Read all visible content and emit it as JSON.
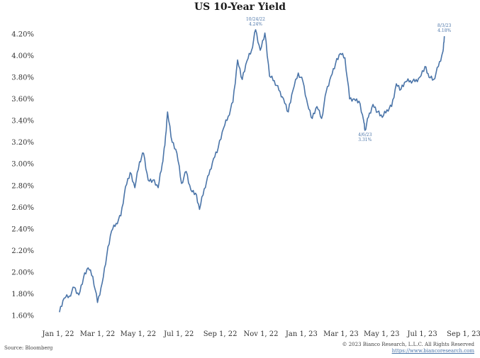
{
  "chart_data": {
    "type": "line",
    "title": "US 10-Year Yield",
    "xlabel": "",
    "ylabel": "",
    "ylim": [
      1.6,
      4.3
    ],
    "grid": false,
    "y_ticks": [
      "1.60%",
      "1.80%",
      "2.00%",
      "2.20%",
      "2.40%",
      "2.60%",
      "2.80%",
      "3.00%",
      "3.20%",
      "3.40%",
      "3.60%",
      "3.80%",
      "4.00%",
      "4.20%"
    ],
    "y_tick_values": [
      1.6,
      1.8,
      2.0,
      2.2,
      2.4,
      2.6,
      2.8,
      3.0,
      3.2,
      3.4,
      3.6,
      3.8,
      4.0,
      4.2
    ],
    "x_ticks": [
      "Jan 1, 22",
      "Mar 1, 22",
      "May 1, 22",
      "Jul 1, 22",
      "Sep 1, 22",
      "Nov 1, 22",
      "Jan 1, 23",
      "Mar 1, 23",
      "May 1, 23",
      "Jul 1, 23",
      "Sep 1, 23"
    ],
    "x_tick_dates": [
      "2022-01-01",
      "2022-03-01",
      "2022-05-01",
      "2022-07-01",
      "2022-09-01",
      "2022-11-01",
      "2023-01-01",
      "2023-03-01",
      "2023-05-01",
      "2023-07-01",
      "2023-09-01"
    ],
    "x": [
      "2022-01-03",
      "2022-01-10",
      "2022-01-18",
      "2022-01-25",
      "2022-02-01",
      "2022-02-08",
      "2022-02-15",
      "2022-02-22",
      "2022-03-01",
      "2022-03-08",
      "2022-03-15",
      "2022-03-22",
      "2022-03-29",
      "2022-04-05",
      "2022-04-12",
      "2022-04-19",
      "2022-04-26",
      "2022-05-03",
      "2022-05-09",
      "2022-05-16",
      "2022-05-23",
      "2022-05-31",
      "2022-06-06",
      "2022-06-10",
      "2022-06-14",
      "2022-06-21",
      "2022-06-28",
      "2022-07-05",
      "2022-07-12",
      "2022-07-19",
      "2022-07-26",
      "2022-08-01",
      "2022-08-08",
      "2022-08-15",
      "2022-08-22",
      "2022-08-29",
      "2022-09-06",
      "2022-09-13",
      "2022-09-20",
      "2022-09-27",
      "2022-10-04",
      "2022-10-11",
      "2022-10-18",
      "2022-10-24",
      "2022-10-31",
      "2022-11-07",
      "2022-11-14",
      "2022-11-21",
      "2022-11-28",
      "2022-12-05",
      "2022-12-12",
      "2022-12-19",
      "2022-12-27",
      "2023-01-03",
      "2023-01-10",
      "2023-01-17",
      "2023-01-24",
      "2023-01-31",
      "2023-02-07",
      "2023-02-14",
      "2023-02-21",
      "2023-02-28",
      "2023-03-07",
      "2023-03-14",
      "2023-03-21",
      "2023-03-28",
      "2023-04-04",
      "2023-04-06",
      "2023-04-11",
      "2023-04-18",
      "2023-04-25",
      "2023-05-02",
      "2023-05-09",
      "2023-05-16",
      "2023-05-23",
      "2023-05-30",
      "2023-06-06",
      "2023-06-13",
      "2023-06-20",
      "2023-06-27",
      "2023-07-05",
      "2023-07-11",
      "2023-07-18",
      "2023-07-25",
      "2023-08-01",
      "2023-08-03"
    ],
    "series": [
      {
        "name": "",
        "values": [
          1.63,
          1.76,
          1.78,
          1.86,
          1.79,
          1.95,
          2.04,
          1.96,
          1.72,
          1.9,
          2.16,
          2.38,
          2.45,
          2.52,
          2.79,
          2.92,
          2.78,
          3.02,
          3.1,
          2.85,
          2.85,
          2.78,
          3.0,
          3.17,
          3.48,
          3.2,
          3.1,
          2.82,
          2.93,
          2.76,
          2.73,
          2.58,
          2.77,
          2.9,
          3.05,
          3.15,
          3.33,
          3.44,
          3.57,
          3.96,
          3.78,
          3.95,
          4.05,
          4.24,
          4.05,
          4.21,
          3.81,
          3.77,
          3.68,
          3.6,
          3.48,
          3.68,
          3.84,
          3.76,
          3.55,
          3.42,
          3.53,
          3.42,
          3.67,
          3.81,
          3.93,
          4.02,
          3.98,
          3.6,
          3.6,
          3.58,
          3.4,
          3.31,
          3.43,
          3.55,
          3.48,
          3.43,
          3.5,
          3.53,
          3.74,
          3.69,
          3.76,
          3.77,
          3.76,
          3.8,
          3.9,
          3.8,
          3.78,
          3.9,
          4.04,
          4.18
        ]
      }
    ],
    "annotations": [
      {
        "date": "2022-10-24",
        "value": 4.24,
        "label": "10/24/22",
        "sublabel": "4.24%",
        "position": "above"
      },
      {
        "date": "2023-04-06",
        "value": 3.31,
        "label": "4/6/23",
        "sublabel": "3.31%",
        "position": "below"
      },
      {
        "date": "2023-08-03",
        "value": 4.18,
        "label": "8/3/23",
        "sublabel": "4.18%",
        "position": "above"
      }
    ],
    "line_color": "#4a74a8"
  },
  "source_note": "Source: Bloomberg",
  "copyright": "© 2023 Bianco Research, L.L.C. All Rights Reserved",
  "copyright_url": "https://www.biancoresearch.com"
}
